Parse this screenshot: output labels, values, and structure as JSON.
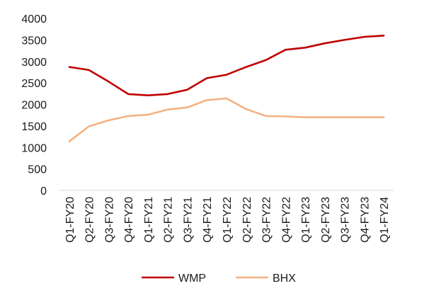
{
  "chart_data": {
    "type": "line",
    "title": "",
    "xlabel": "",
    "ylabel": "",
    "categories": [
      "Q1-FY20",
      "Q2-FY20",
      "Q3-FY20",
      "Q4-FY20",
      "Q1-FY21",
      "Q2-FY21",
      "Q3-FY21",
      "Q4-FY21",
      "Q1-FY22",
      "Q2-FY22",
      "Q3-FY22",
      "Q4-FY22",
      "Q1-FY23",
      "Q2-FY23",
      "Q3-FY23",
      "Q4-FY23",
      "Q1-FY24"
    ],
    "ylim": [
      0,
      4000
    ],
    "yticks": [
      0,
      500,
      1000,
      1500,
      2000,
      2500,
      3000,
      3500,
      4000
    ],
    "grid": false,
    "legend_position": "bottom",
    "series": [
      {
        "name": "WMP",
        "color": "#c00000",
        "values": [
          2870,
          2800,
          2530,
          2240,
          2210,
          2240,
          2340,
          2610,
          2690,
          2870,
          3030,
          3270,
          3320,
          3420,
          3500,
          3570,
          3600
        ]
      },
      {
        "name": "BHX",
        "color": "#f4b183",
        "values": [
          1140,
          1490,
          1630,
          1730,
          1760,
          1880,
          1930,
          2100,
          2140,
          1890,
          1730,
          1720,
          1700,
          1700,
          1700,
          1700,
          1700
        ]
      }
    ]
  }
}
